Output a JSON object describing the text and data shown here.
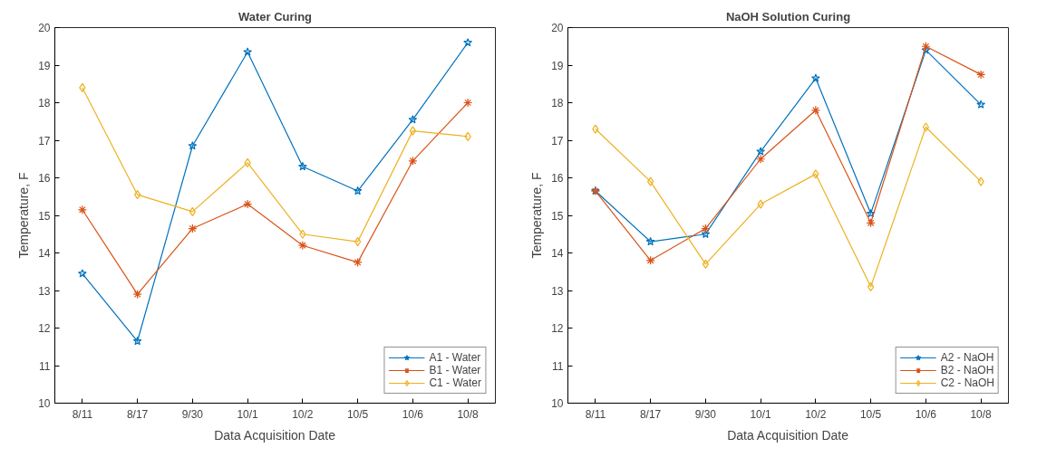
{
  "chart_data": [
    {
      "type": "line",
      "title": "Water Curing",
      "xlabel": "Data Acquisition Date",
      "ylabel": "Temperature, F",
      "categories": [
        "8/11",
        "8/17",
        "9/30",
        "10/1",
        "10/2",
        "10/5",
        "10/6",
        "10/8"
      ],
      "series": [
        {
          "name": "A1 - Water",
          "color": "#0072bd",
          "marker": "star",
          "values": [
            13.45,
            11.65,
            16.85,
            19.35,
            16.3,
            15.65,
            17.55,
            19.6
          ]
        },
        {
          "name": "B1 - Water",
          "color": "#d95319",
          "marker": "cross",
          "values": [
            15.15,
            12.9,
            14.65,
            15.3,
            14.2,
            13.75,
            16.45,
            18.0
          ]
        },
        {
          "name": "C1 - Water",
          "color": "#edb120",
          "marker": "diamond",
          "values": [
            18.4,
            15.55,
            15.1,
            16.4,
            14.5,
            14.3,
            17.25,
            17.1
          ]
        }
      ],
      "ylim": [
        10,
        20
      ],
      "yticks": [
        10,
        11,
        12,
        13,
        14,
        15,
        16,
        17,
        18,
        19,
        20
      ],
      "grid": false,
      "legend": "bottom right",
      "line_style": "solid"
    },
    {
      "type": "line",
      "title": "NaOH Solution Curing",
      "xlabel": "Data Acquisition Date",
      "ylabel": "Temperature, F",
      "categories": [
        "8/11",
        "8/17",
        "9/30",
        "10/1",
        "10/2",
        "10/5",
        "10/6",
        "10/8"
      ],
      "series": [
        {
          "name": "A2 - NaOH",
          "color": "#0072bd",
          "marker": "star",
          "values": [
            15.65,
            14.3,
            14.5,
            16.7,
            18.65,
            15.05,
            19.4,
            17.95
          ]
        },
        {
          "name": "B2 - NaOH",
          "color": "#d95319",
          "marker": "cross",
          "values": [
            15.65,
            13.8,
            14.65,
            16.5,
            17.8,
            14.8,
            19.5,
            18.75
          ]
        },
        {
          "name": "C2 - NaOH",
          "color": "#edb120",
          "marker": "diamond",
          "values": [
            17.3,
            15.9,
            13.7,
            15.3,
            16.1,
            13.1,
            17.35,
            15.9
          ]
        }
      ],
      "ylim": [
        10,
        20
      ],
      "yticks": [
        10,
        11,
        12,
        13,
        14,
        15,
        16,
        17,
        18,
        19,
        20
      ],
      "grid": false,
      "legend": "bottom right",
      "line_style": "solid"
    }
  ]
}
